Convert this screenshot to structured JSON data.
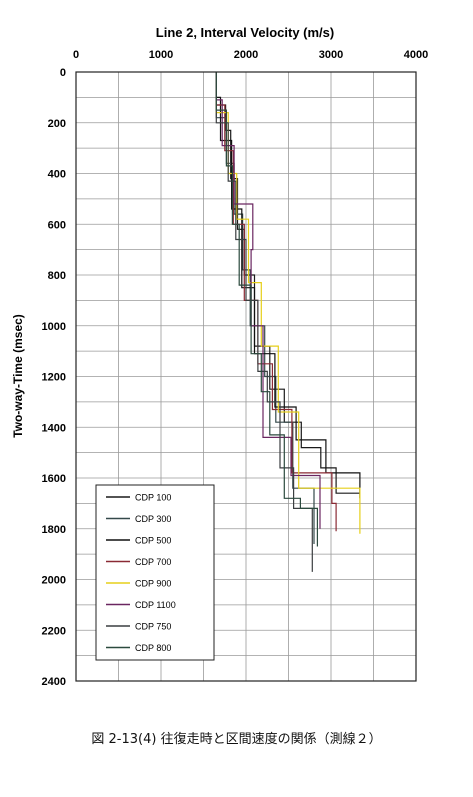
{
  "chart_data": {
    "type": "line",
    "title": "Line 2, Interval Velocity (m/s)",
    "xlabel": "",
    "ylabel": "Two-way-Time (msec)",
    "xlim": [
      0,
      4000
    ],
    "ylim": [
      0,
      2400
    ],
    "y_inverted": true,
    "x_axis_position": "top",
    "x_ticks": [
      0,
      1000,
      2000,
      3000,
      4000
    ],
    "y_ticks": [
      0,
      200,
      400,
      600,
      800,
      1000,
      1200,
      1400,
      1600,
      1800,
      2000,
      2200,
      2400
    ],
    "grid": true,
    "legend_placement": "bottom-left",
    "series": [
      {
        "name": "CDP 100",
        "color": "#1a1a1a",
        "steps": [
          [
            1650,
            0
          ],
          [
            1650,
            130
          ],
          [
            1760,
            130
          ],
          [
            1760,
            230
          ],
          [
            1820,
            230
          ],
          [
            1820,
            420
          ],
          [
            1900,
            420
          ],
          [
            1900,
            620
          ],
          [
            1980,
            620
          ],
          [
            1980,
            800
          ],
          [
            2100,
            800
          ],
          [
            2100,
            1080
          ],
          [
            2280,
            1080
          ],
          [
            2280,
            1250
          ],
          [
            2450,
            1250
          ],
          [
            2450,
            1380
          ],
          [
            2650,
            1380
          ],
          [
            2650,
            1480
          ],
          [
            2880,
            1480
          ],
          [
            2880,
            1560
          ],
          [
            3060,
            1560
          ],
          [
            3060,
            1660
          ],
          [
            3340,
            1660
          ],
          [
            3340,
            1680
          ]
        ]
      },
      {
        "name": "CDP 300",
        "color": "#34494a",
        "steps": [
          [
            1650,
            0
          ],
          [
            1650,
            180
          ],
          [
            1770,
            180
          ],
          [
            1770,
            360
          ],
          [
            1860,
            360
          ],
          [
            1860,
            560
          ],
          [
            1960,
            560
          ],
          [
            1960,
            780
          ],
          [
            2050,
            780
          ],
          [
            2050,
            1000
          ],
          [
            2220,
            1000
          ],
          [
            2220,
            1200
          ],
          [
            2350,
            1200
          ],
          [
            2350,
            1380
          ],
          [
            2550,
            1380
          ],
          [
            2550,
            1640
          ],
          [
            2800,
            1640
          ],
          [
            2800,
            1860
          ]
        ]
      },
      {
        "name": "CDP 500",
        "color": "#101010",
        "steps": [
          [
            1650,
            0
          ],
          [
            1650,
            100
          ],
          [
            1700,
            100
          ],
          [
            1700,
            270
          ],
          [
            1830,
            270
          ],
          [
            1830,
            540
          ],
          [
            1950,
            540
          ],
          [
            1950,
            850
          ],
          [
            2100,
            850
          ],
          [
            2100,
            1110
          ],
          [
            2340,
            1110
          ],
          [
            2340,
            1320
          ],
          [
            2590,
            1320
          ],
          [
            2590,
            1450
          ],
          [
            2940,
            1450
          ],
          [
            2940,
            1580
          ],
          [
            3340,
            1580
          ],
          [
            3340,
            1660
          ]
        ]
      },
      {
        "name": "CDP 700",
        "color": "#8a2a34",
        "steps": [
          [
            1650,
            0
          ],
          [
            1650,
            130
          ],
          [
            1750,
            130
          ],
          [
            1750,
            310
          ],
          [
            1850,
            310
          ],
          [
            1850,
            600
          ],
          [
            1980,
            600
          ],
          [
            1980,
            900
          ],
          [
            2140,
            900
          ],
          [
            2140,
            1150
          ],
          [
            2310,
            1150
          ],
          [
            2310,
            1330
          ],
          [
            2540,
            1330
          ],
          [
            2540,
            1580
          ],
          [
            3010,
            1580
          ],
          [
            3010,
            1700
          ],
          [
            3060,
            1700
          ],
          [
            3060,
            1810
          ]
        ]
      },
      {
        "name": "CDP 900",
        "color": "#e6cf1a",
        "steps": [
          [
            1650,
            0
          ],
          [
            1650,
            160
          ],
          [
            1790,
            160
          ],
          [
            1790,
            400
          ],
          [
            1890,
            400
          ],
          [
            1890,
            580
          ],
          [
            2030,
            580
          ],
          [
            2030,
            830
          ],
          [
            2180,
            830
          ],
          [
            2180,
            1080
          ],
          [
            2380,
            1080
          ],
          [
            2380,
            1340
          ],
          [
            2620,
            1340
          ],
          [
            2620,
            1640
          ],
          [
            3340,
            1640
          ],
          [
            3340,
            1820
          ]
        ]
      },
      {
        "name": "CDP 1100",
        "color": "#6a2660",
        "steps": [
          [
            1650,
            0
          ],
          [
            1650,
            110
          ],
          [
            1720,
            110
          ],
          [
            1720,
            290
          ],
          [
            1860,
            290
          ],
          [
            1860,
            520
          ],
          [
            2080,
            520
          ],
          [
            2080,
            700
          ],
          [
            2060,
            700
          ],
          [
            2060,
            1000
          ],
          [
            2200,
            1000
          ],
          [
            2200,
            1440
          ],
          [
            2530,
            1440
          ],
          [
            2530,
            1590
          ],
          [
            2870,
            1590
          ],
          [
            2870,
            1800
          ]
        ]
      },
      {
        "name": "CDP 750",
        "color": "#3a3e40",
        "steps": [
          [
            1650,
            0
          ],
          [
            1650,
            200
          ],
          [
            1790,
            200
          ],
          [
            1790,
            430
          ],
          [
            1880,
            430
          ],
          [
            1880,
            660
          ],
          [
            2000,
            660
          ],
          [
            2000,
            900
          ],
          [
            2140,
            900
          ],
          [
            2140,
            1180
          ],
          [
            2250,
            1180
          ],
          [
            2250,
            1300
          ],
          [
            2400,
            1300
          ],
          [
            2400,
            1560
          ],
          [
            2560,
            1560
          ],
          [
            2560,
            1720
          ],
          [
            2780,
            1720
          ],
          [
            2780,
            1970
          ]
        ]
      },
      {
        "name": "CDP 800",
        "color": "#2b4a3e",
        "steps": [
          [
            1650,
            0
          ],
          [
            1650,
            150
          ],
          [
            1770,
            150
          ],
          [
            1770,
            370
          ],
          [
            1840,
            370
          ],
          [
            1840,
            600
          ],
          [
            1920,
            600
          ],
          [
            1920,
            840
          ],
          [
            2060,
            840
          ],
          [
            2060,
            1110
          ],
          [
            2180,
            1110
          ],
          [
            2180,
            1260
          ],
          [
            2280,
            1260
          ],
          [
            2280,
            1430
          ],
          [
            2450,
            1430
          ],
          [
            2450,
            1680
          ],
          [
            2640,
            1680
          ],
          [
            2640,
            1720
          ],
          [
            2840,
            1720
          ],
          [
            2840,
            1870
          ]
        ]
      }
    ]
  },
  "caption": "図 2-13(4)  往復走時と区間速度の関係（測線２）"
}
